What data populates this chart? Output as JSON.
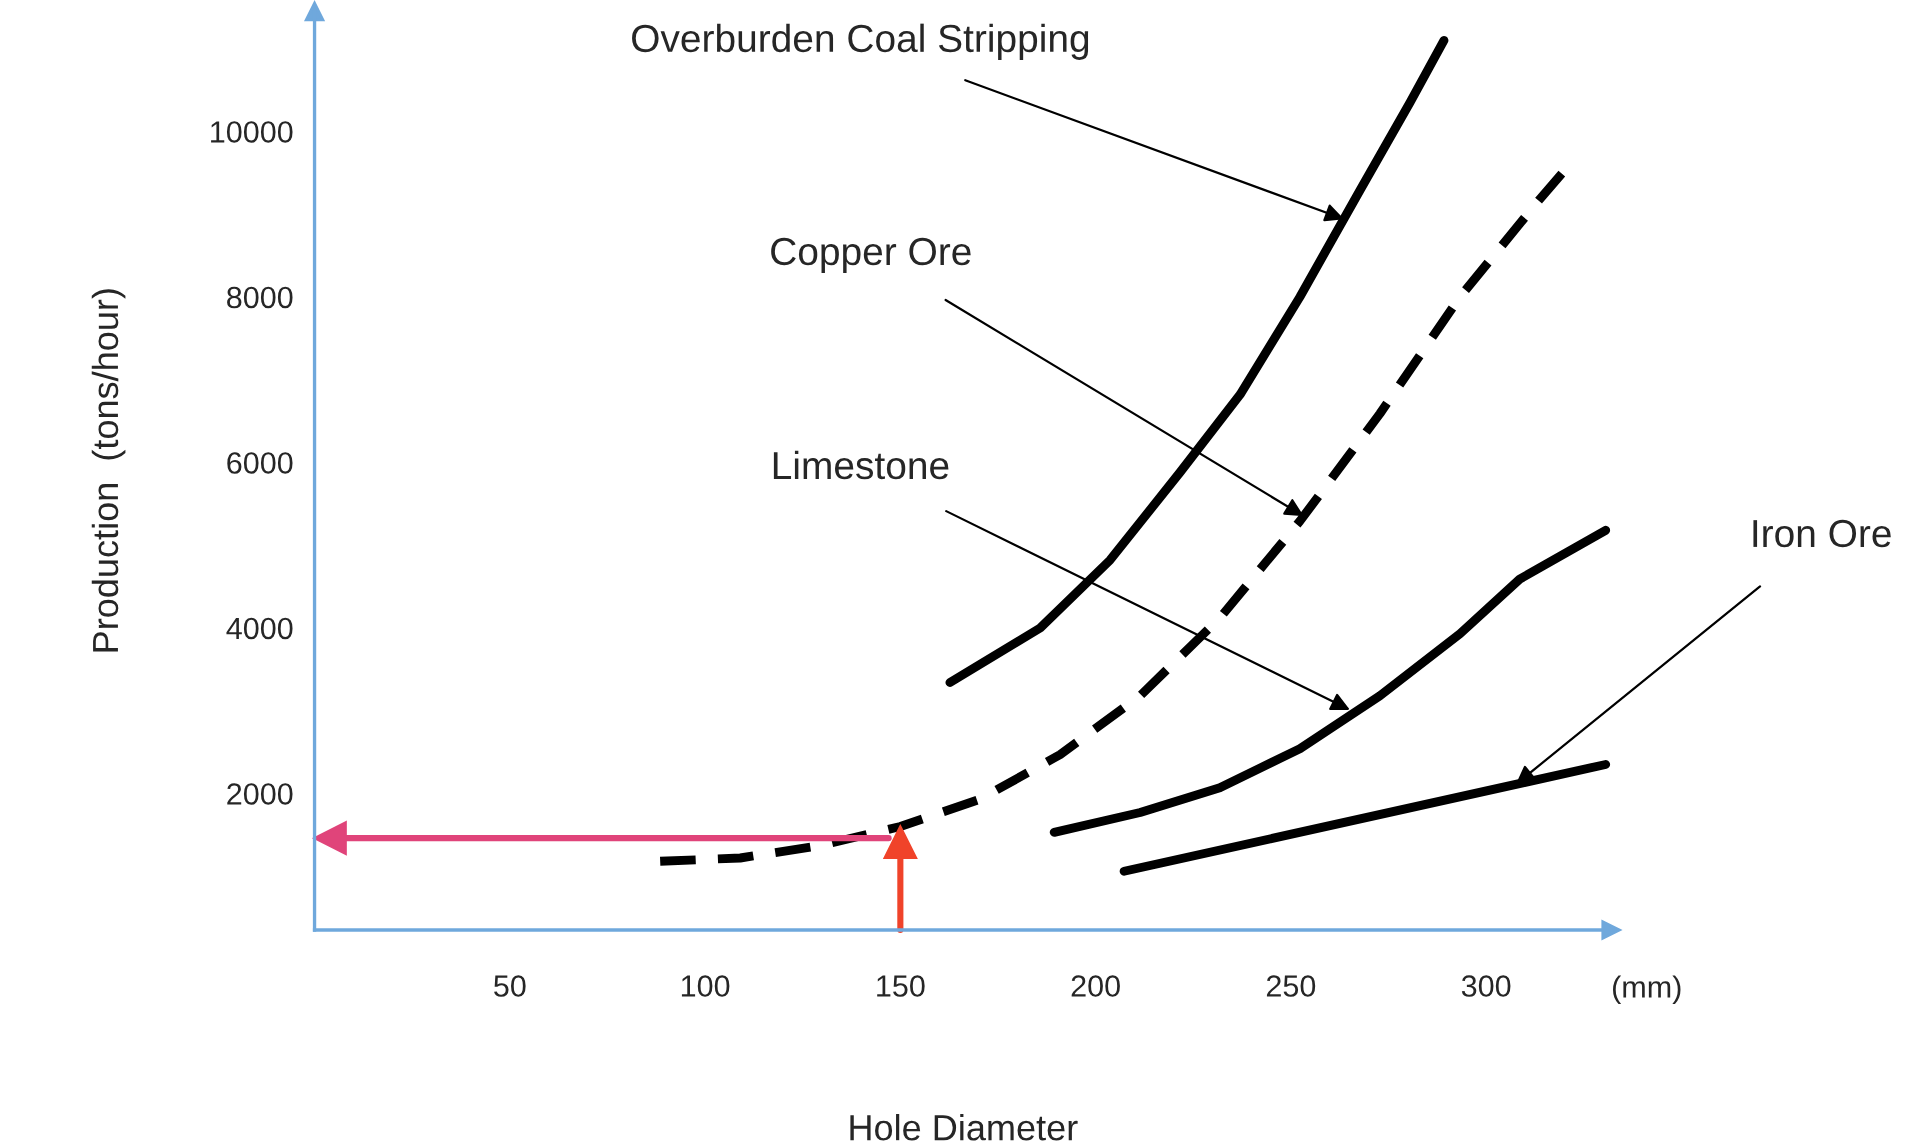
{
  "chart_data": {
    "type": "line",
    "xlabel": "Hole Diameter",
    "ylabel": "Production  (tons/hour)",
    "xlim": [
      0,
      332
    ],
    "ylim": [
      350,
      11450
    ],
    "xticks": [
      50,
      100,
      150,
      200,
      250,
      300
    ],
    "yticks": [
      2000,
      4000,
      6000,
      8000,
      10000
    ],
    "grid": false,
    "legend": false,
    "marker": "none",
    "series": [
      {
        "color": "#000000",
        "line_style": "solid",
        "x": [
          162.7,
          185.8,
          203.7,
          221.6,
          237,
          252.3,
          267.7,
          280.5,
          289.2
        ],
        "values": [
          3340,
          4000,
          4820,
          5880,
          6820,
          8000,
          9290,
          10350,
          11100
        ]
      },
      {
        "color": "#000000",
        "line_style": "dashed",
        "x": [
          88.5,
          109,
          129.5,
          150,
          170.4,
          190.9,
          211.4,
          231.8,
          252.3,
          272.8,
          293.3,
          313.7,
          321.4
        ],
        "values": [
          1180,
          1220,
          1370,
          1600,
          1930,
          2470,
          3180,
          4120,
          5290,
          6590,
          8000,
          9180,
          9600
        ]
      },
      {
        "color": "#000000",
        "line_style": "solid",
        "x": [
          189.4,
          211.4,
          231.8,
          252.3,
          272.8,
          293.3,
          308.6,
          330.6
        ],
        "values": [
          1530,
          1770,
          2070,
          2540,
          3180,
          3930,
          4590,
          5180
        ]
      },
      {
        "color": "#000000",
        "line_style": "solid",
        "x": [
          207.3,
          330.6
        ],
        "values": [
          1060,
          2350
        ]
      },
      {
        "color": "#e0447a",
        "line_style": "solid",
        "marker": "triangle",
        "x": [
          147,
          4
        ],
        "values": [
          1460,
          1460
        ]
      },
      {
        "color": "#f0432a",
        "line_style": "solid",
        "marker": "triangle",
        "x": [
          150,
          150
        ],
        "values": [
          350,
          1410
        ]
      }
    ],
    "annotations": [
      {
        "text": "Overburden Coal Stripping",
        "x": 263.6,
        "y": 8940
      },
      {
        "text": "Copper Ore",
        "x": 253.3,
        "y": 5350
      },
      {
        "text": "Limestone",
        "x": 265.1,
        "y": 3010
      },
      {
        "text": "Iron Ore",
        "x": 307.6,
        "y": 2110
      },
      "(mm)"
    ]
  }
}
